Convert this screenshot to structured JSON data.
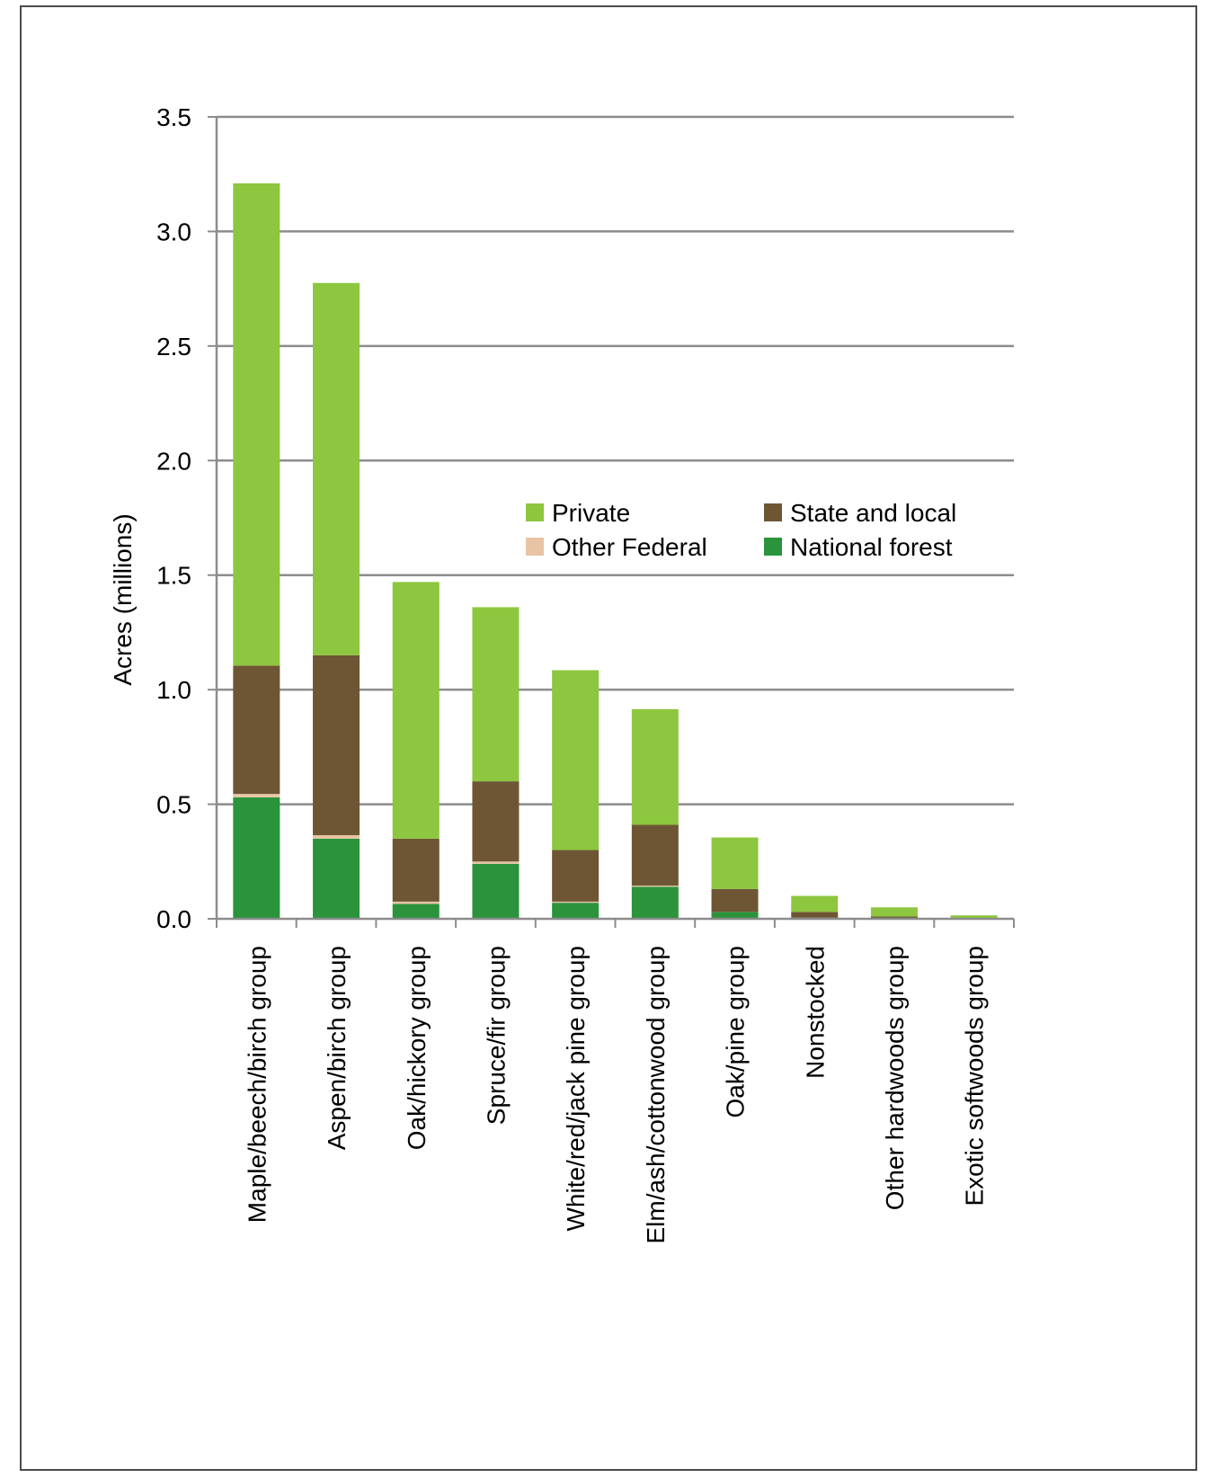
{
  "chart_data": {
    "type": "bar",
    "stacked": true,
    "ylabel": "Acres (millions)",
    "ylim": [
      0,
      3.5
    ],
    "yticks": [
      "0.0",
      "0.5",
      "1.0",
      "1.5",
      "2.0",
      "2.5",
      "3.0",
      "3.5"
    ],
    "ytick_values": [
      0,
      0.5,
      1.0,
      1.5,
      2.0,
      2.5,
      3.0,
      3.5
    ],
    "grid": true,
    "legend_position": "center-right",
    "categories": [
      "Maple/beech/birch group",
      "Aspen/birch group",
      "Oak/hickory group",
      "Spruce/fir group",
      "White/red/jack pine group",
      "Elm/ash/cottonwood group",
      "Oak/pine group",
      "Nonstocked",
      "Other hardwoods group",
      "Exotic softwoods group"
    ],
    "series": [
      {
        "name": "National forest",
        "color": "#2a933b",
        "values": [
          0.53,
          0.35,
          0.065,
          0.24,
          0.07,
          0.14,
          0.03,
          0.005,
          0.0,
          0.0
        ]
      },
      {
        "name": "Other Federal",
        "color": "#e8c4a4",
        "values": [
          0.015,
          0.015,
          0.01,
          0.01,
          0.005,
          0.005,
          0.0,
          0.0,
          0.0,
          0.0
        ]
      },
      {
        "name": "State and local",
        "color": "#6e5634",
        "values": [
          0.56,
          0.785,
          0.275,
          0.35,
          0.225,
          0.265,
          0.1,
          0.025,
          0.01,
          0.0
        ]
      },
      {
        "name": "Private",
        "color": "#8dc63f",
        "values": [
          2.105,
          1.625,
          1.12,
          0.76,
          0.785,
          0.505,
          0.225,
          0.07,
          0.04,
          0.015
        ]
      }
    ],
    "legend": [
      {
        "name": "Private",
        "color": "#8dc63f"
      },
      {
        "name": "State and local",
        "color": "#6e5634"
      },
      {
        "name": "Other Federal",
        "color": "#e8c4a4"
      },
      {
        "name": "National forest",
        "color": "#2a933b"
      }
    ]
  }
}
